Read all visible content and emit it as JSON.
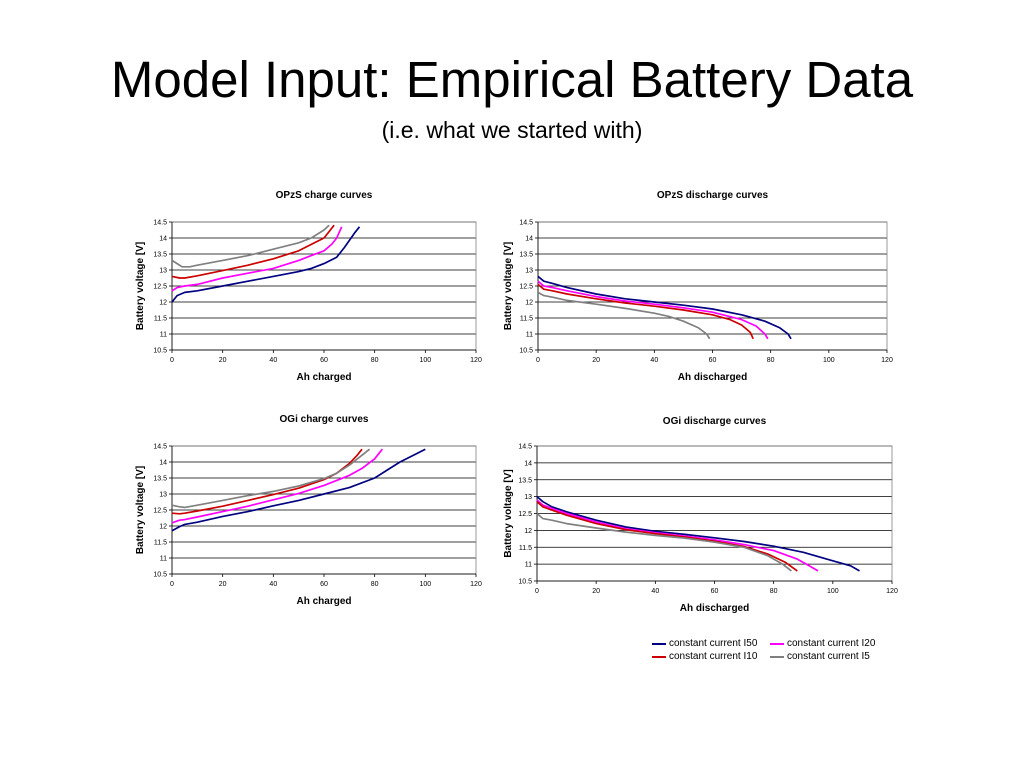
{
  "title": "Model Input: Empirical Battery Data",
  "subtitle": "(i.e. what we started with)",
  "legend": [
    {
      "name": "constant current I50",
      "color": "#000080"
    },
    {
      "name": "constant current I20",
      "color": "#ff00ff"
    },
    {
      "name": "constant current I10",
      "color": "#cc0000"
    },
    {
      "name": "constant current I5",
      "color": "#808080"
    }
  ],
  "chart_data": [
    {
      "id": "opzs-charge",
      "type": "line",
      "title": "OPzS charge curves",
      "xlabel": "Ah charged",
      "ylabel": "Battery voltage [V]",
      "xlim": [
        0,
        120
      ],
      "ylim": [
        10.5,
        14.5
      ],
      "xticks": [
        "0",
        "20",
        "40",
        "60",
        "80",
        "100",
        "120"
      ],
      "yticks": [
        "10.5",
        "11",
        "11.5",
        "12",
        "12.5",
        "13",
        "13.5",
        "14",
        "14.5"
      ],
      "grid": "horizontal",
      "series": [
        {
          "name": "constant current I50",
          "color": "#000080",
          "points": [
            [
              0,
              12.0
            ],
            [
              2,
              12.2
            ],
            [
              5,
              12.3
            ],
            [
              10,
              12.35
            ],
            [
              20,
              12.5
            ],
            [
              30,
              12.65
            ],
            [
              40,
              12.8
            ],
            [
              50,
              12.95
            ],
            [
              55,
              13.05
            ],
            [
              60,
              13.2
            ],
            [
              65,
              13.4
            ],
            [
              68,
              13.7
            ],
            [
              72,
              14.15
            ],
            [
              74,
              14.35
            ]
          ]
        },
        {
          "name": "constant current I20",
          "color": "#ff00ff",
          "points": [
            [
              0,
              12.35
            ],
            [
              2,
              12.45
            ],
            [
              5,
              12.5
            ],
            [
              10,
              12.55
            ],
            [
              20,
              12.75
            ],
            [
              30,
              12.9
            ],
            [
              40,
              13.05
            ],
            [
              50,
              13.3
            ],
            [
              55,
              13.45
            ],
            [
              60,
              13.6
            ],
            [
              63,
              13.8
            ],
            [
              65,
              14.0
            ],
            [
              67,
              14.35
            ]
          ]
        },
        {
          "name": "constant current I10",
          "color": "#cc0000",
          "points": [
            [
              0,
              12.8
            ],
            [
              3,
              12.75
            ],
            [
              5,
              12.75
            ],
            [
              10,
              12.82
            ],
            [
              20,
              12.98
            ],
            [
              30,
              13.15
            ],
            [
              40,
              13.35
            ],
            [
              50,
              13.6
            ],
            [
              55,
              13.8
            ],
            [
              60,
              14.0
            ],
            [
              62,
              14.2
            ],
            [
              64,
              14.4
            ]
          ]
        },
        {
          "name": "constant current I5",
          "color": "#808080",
          "points": [
            [
              0,
              13.3
            ],
            [
              2,
              13.2
            ],
            [
              4,
              13.1
            ],
            [
              7,
              13.1
            ],
            [
              10,
              13.15
            ],
            [
              20,
              13.3
            ],
            [
              30,
              13.45
            ],
            [
              40,
              13.65
            ],
            [
              50,
              13.85
            ],
            [
              55,
              14.0
            ],
            [
              60,
              14.25
            ],
            [
              62,
              14.4
            ]
          ]
        }
      ]
    },
    {
      "id": "opzs-discharge",
      "type": "line",
      "title": "OPzS discharge curves",
      "xlabel": "Ah discharged",
      "ylabel": "Battery voltage [V]",
      "xlim": [
        0,
        120
      ],
      "ylim": [
        10.5,
        14.5
      ],
      "xticks": [
        "0",
        "20",
        "40",
        "60",
        "80",
        "100",
        "120"
      ],
      "yticks": [
        "10.5",
        "11",
        "11.5",
        "12",
        "12.5",
        "13",
        "13.5",
        "14",
        "14.5"
      ],
      "grid": "horizontal",
      "series": [
        {
          "name": "constant current I50",
          "color": "#000080",
          "points": [
            [
              0,
              12.8
            ],
            [
              2,
              12.65
            ],
            [
              5,
              12.58
            ],
            [
              10,
              12.45
            ],
            [
              20,
              12.25
            ],
            [
              30,
              12.1
            ],
            [
              40,
              12.0
            ],
            [
              50,
              11.9
            ],
            [
              60,
              11.78
            ],
            [
              70,
              11.6
            ],
            [
              78,
              11.4
            ],
            [
              83,
              11.2
            ],
            [
              86,
              11.0
            ],
            [
              87,
              10.85
            ]
          ]
        },
        {
          "name": "constant current I20",
          "color": "#ff00ff",
          "points": [
            [
              0,
              12.65
            ],
            [
              2,
              12.5
            ],
            [
              5,
              12.45
            ],
            [
              10,
              12.35
            ],
            [
              20,
              12.17
            ],
            [
              30,
              12.03
            ],
            [
              40,
              11.93
            ],
            [
              50,
              11.82
            ],
            [
              60,
              11.68
            ],
            [
              70,
              11.45
            ],
            [
              75,
              11.25
            ],
            [
              78,
              11.0
            ],
            [
              79,
              10.85
            ]
          ]
        },
        {
          "name": "constant current I10",
          "color": "#cc0000",
          "points": [
            [
              0,
              12.55
            ],
            [
              2,
              12.4
            ],
            [
              5,
              12.35
            ],
            [
              10,
              12.25
            ],
            [
              20,
              12.1
            ],
            [
              30,
              11.97
            ],
            [
              40,
              11.87
            ],
            [
              50,
              11.75
            ],
            [
              60,
              11.6
            ],
            [
              66,
              11.45
            ],
            [
              70,
              11.28
            ],
            [
              73,
              11.05
            ],
            [
              74,
              10.85
            ]
          ]
        },
        {
          "name": "constant current I5",
          "color": "#808080",
          "points": [
            [
              0,
              12.3
            ],
            [
              2,
              12.2
            ],
            [
              5,
              12.15
            ],
            [
              10,
              12.05
            ],
            [
              20,
              11.93
            ],
            [
              30,
              11.8
            ],
            [
              40,
              11.65
            ],
            [
              45,
              11.55
            ],
            [
              50,
              11.4
            ],
            [
              55,
              11.2
            ],
            [
              58,
              11.0
            ],
            [
              59,
              10.85
            ]
          ]
        }
      ]
    },
    {
      "id": "ogi-charge",
      "type": "line",
      "title": "OGi charge curves",
      "xlabel": "Ah charged",
      "ylabel": "Battery voltage [V]",
      "xlim": [
        0,
        120
      ],
      "ylim": [
        10.5,
        14.5
      ],
      "xticks": [
        "0",
        "20",
        "40",
        "60",
        "80",
        "100",
        "120"
      ],
      "yticks": [
        "10.5",
        "11",
        "11.5",
        "12",
        "12.5",
        "13",
        "13.5",
        "14",
        "14.5"
      ],
      "grid": "horizontal",
      "series": [
        {
          "name": "constant current I50",
          "color": "#000080",
          "points": [
            [
              0,
              11.85
            ],
            [
              3,
              11.98
            ],
            [
              5,
              12.05
            ],
            [
              10,
              12.12
            ],
            [
              20,
              12.3
            ],
            [
              30,
              12.45
            ],
            [
              40,
              12.63
            ],
            [
              50,
              12.8
            ],
            [
              60,
              13.0
            ],
            [
              70,
              13.2
            ],
            [
              80,
              13.5
            ],
            [
              85,
              13.75
            ],
            [
              90,
              14.0
            ],
            [
              95,
              14.2
            ],
            [
              100,
              14.4
            ]
          ]
        },
        {
          "name": "constant current I20",
          "color": "#ff00ff",
          "points": [
            [
              0,
              12.1
            ],
            [
              3,
              12.18
            ],
            [
              5,
              12.2
            ],
            [
              10,
              12.28
            ],
            [
              20,
              12.45
            ],
            [
              30,
              12.62
            ],
            [
              40,
              12.82
            ],
            [
              50,
              13.02
            ],
            [
              60,
              13.27
            ],
            [
              70,
              13.58
            ],
            [
              75,
              13.8
            ],
            [
              80,
              14.1
            ],
            [
              83,
              14.4
            ]
          ]
        },
        {
          "name": "constant current I10",
          "color": "#cc0000",
          "points": [
            [
              0,
              12.4
            ],
            [
              3,
              12.38
            ],
            [
              5,
              12.4
            ],
            [
              10,
              12.47
            ],
            [
              20,
              12.62
            ],
            [
              30,
              12.8
            ],
            [
              40,
              12.98
            ],
            [
              50,
              13.18
            ],
            [
              60,
              13.45
            ],
            [
              65,
              13.65
            ],
            [
              70,
              13.95
            ],
            [
              73,
              14.2
            ],
            [
              75,
              14.4
            ]
          ]
        },
        {
          "name": "constant current I5",
          "color": "#808080",
          "points": [
            [
              0,
              12.65
            ],
            [
              3,
              12.6
            ],
            [
              5,
              12.58
            ],
            [
              10,
              12.65
            ],
            [
              20,
              12.8
            ],
            [
              30,
              12.95
            ],
            [
              40,
              13.08
            ],
            [
              50,
              13.25
            ],
            [
              60,
              13.48
            ],
            [
              65,
              13.65
            ],
            [
              70,
              13.9
            ],
            [
              74,
              14.15
            ],
            [
              78,
              14.4
            ]
          ]
        }
      ]
    },
    {
      "id": "ogi-discharge",
      "type": "line",
      "title": "OGi discharge curves",
      "xlabel": "Ah discharged",
      "ylabel": "Battery voltage [V]",
      "xlim": [
        0,
        120
      ],
      "ylim": [
        10.5,
        14.5
      ],
      "xticks": [
        "0",
        "20",
        "40",
        "60",
        "80",
        "100",
        "120"
      ],
      "yticks": [
        "10.5",
        "11",
        "11.5",
        "12",
        "12.5",
        "13",
        "13.5",
        "14",
        "14.5"
      ],
      "grid": "horizontal",
      "series": [
        {
          "name": "constant current I50",
          "color": "#000080",
          "points": [
            [
              0,
              13.0
            ],
            [
              2,
              12.85
            ],
            [
              5,
              12.7
            ],
            [
              10,
              12.55
            ],
            [
              20,
              12.3
            ],
            [
              30,
              12.1
            ],
            [
              40,
              11.97
            ],
            [
              50,
              11.88
            ],
            [
              60,
              11.78
            ],
            [
              70,
              11.67
            ],
            [
              80,
              11.53
            ],
            [
              90,
              11.35
            ],
            [
              100,
              11.1
            ],
            [
              106,
              10.95
            ],
            [
              109,
              10.8
            ]
          ]
        },
        {
          "name": "constant current I20",
          "color": "#ff00ff",
          "points": [
            [
              0,
              12.9
            ],
            [
              2,
              12.75
            ],
            [
              5,
              12.65
            ],
            [
              10,
              12.5
            ],
            [
              20,
              12.25
            ],
            [
              30,
              12.05
            ],
            [
              40,
              11.93
            ],
            [
              50,
              11.83
            ],
            [
              60,
              11.72
            ],
            [
              70,
              11.58
            ],
            [
              80,
              11.4
            ],
            [
              88,
              11.15
            ],
            [
              92,
              10.95
            ],
            [
              95,
              10.8
            ]
          ]
        },
        {
          "name": "constant current I10",
          "color": "#cc0000",
          "points": [
            [
              0,
              12.85
            ],
            [
              2,
              12.7
            ],
            [
              5,
              12.6
            ],
            [
              10,
              12.45
            ],
            [
              20,
              12.2
            ],
            [
              30,
              12.02
            ],
            [
              40,
              11.9
            ],
            [
              50,
              11.8
            ],
            [
              60,
              11.68
            ],
            [
              70,
              11.52
            ],
            [
              78,
              11.3
            ],
            [
              84,
              11.05
            ],
            [
              88,
              10.8
            ]
          ]
        },
        {
          "name": "constant current I5",
          "color": "#808080",
          "points": [
            [
              0,
              12.5
            ],
            [
              2,
              12.35
            ],
            [
              5,
              12.3
            ],
            [
              10,
              12.2
            ],
            [
              20,
              12.07
            ],
            [
              30,
              11.95
            ],
            [
              40,
              11.85
            ],
            [
              50,
              11.77
            ],
            [
              60,
              11.65
            ],
            [
              70,
              11.5
            ],
            [
              78,
              11.25
            ],
            [
              83,
              11.0
            ],
            [
              86,
              10.8
            ]
          ]
        }
      ]
    }
  ]
}
